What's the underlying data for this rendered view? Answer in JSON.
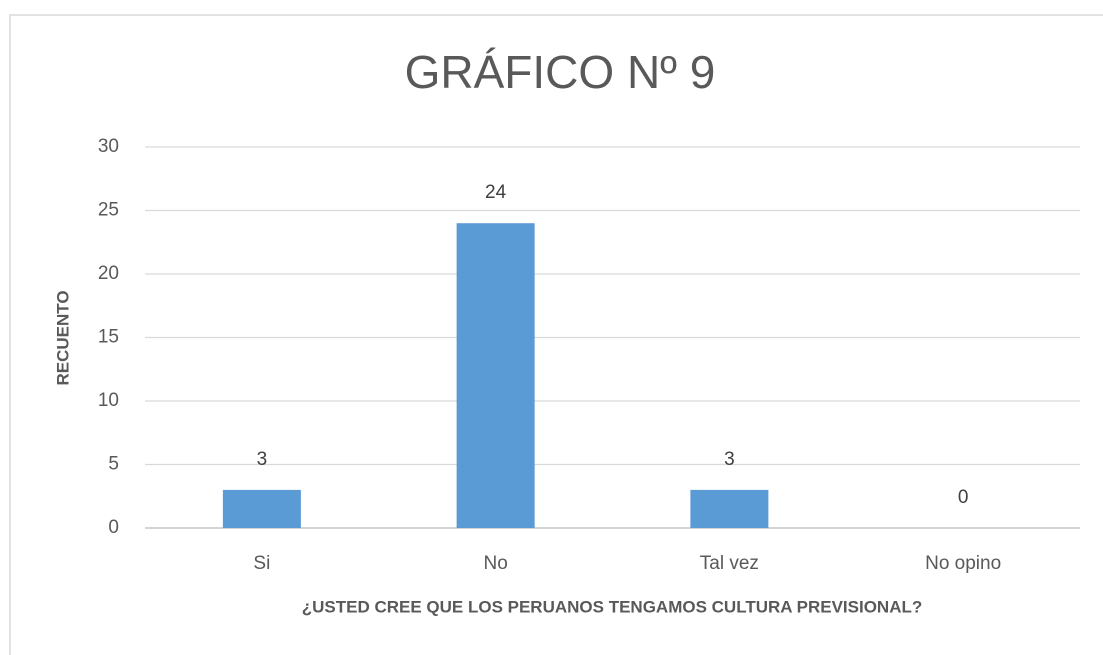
{
  "chart_data": {
    "type": "bar",
    "title": "GRÁFICO Nº 9",
    "x_label": "¿USTED CREE QUE LOS PERUANOS TENGAMOS CULTURA PREVISIONAL?",
    "y_label": "RECUENTO",
    "categories": [
      "Si",
      "No",
      "Tal vez",
      "No opino"
    ],
    "values": [
      3,
      24,
      3,
      0
    ],
    "color": "#5b9bd5",
    "ylim": [
      0,
      30
    ],
    "yticks": [
      0,
      5,
      10,
      15,
      20,
      25,
      30
    ],
    "grid": true
  }
}
